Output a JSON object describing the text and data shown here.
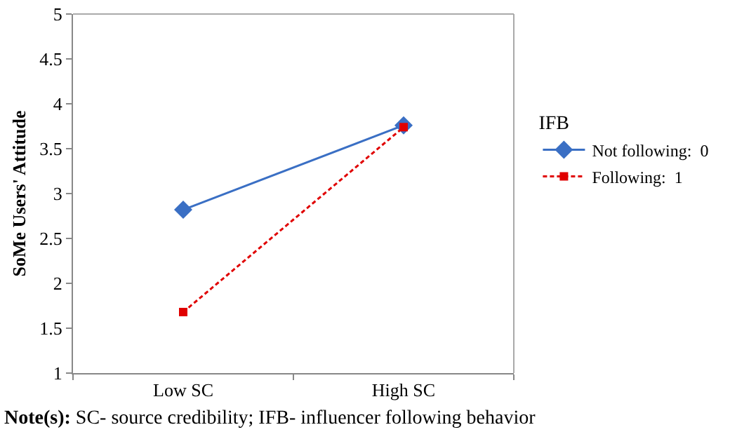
{
  "chart_data": {
    "type": "line",
    "ylabel": "SoMe Users' Attitude",
    "legend_title": "IFB",
    "categories": [
      "Low SC",
      "High SC"
    ],
    "series": [
      {
        "name": "Not following:  0",
        "color": "#3a6fc4",
        "values": [
          2.82,
          3.76
        ],
        "marker": "diamond",
        "line_style": "solid"
      },
      {
        "name": "Following:  1",
        "color": "#e00000",
        "values": [
          1.68,
          3.74
        ],
        "marker": "square",
        "line_style": "dashed"
      }
    ],
    "ylim": [
      1,
      5
    ],
    "yticks": [
      1,
      1.5,
      2,
      2.5,
      3,
      3.5,
      4,
      4.5,
      5
    ],
    "grid": false,
    "legend": "right",
    "annotations": [
      "Note(s): SC- source credibility; IFB- influencer following behavior"
    ]
  }
}
